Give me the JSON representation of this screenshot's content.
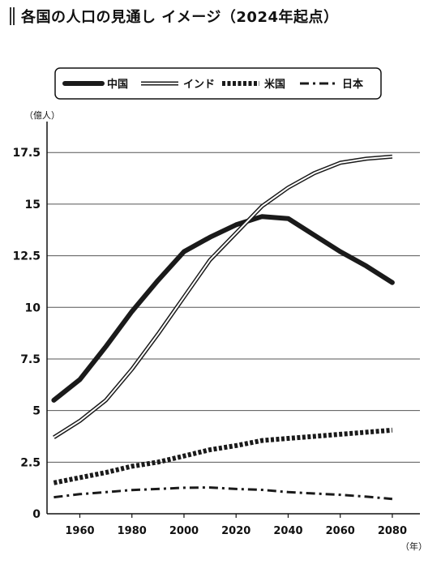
{
  "chart_data": {
    "type": "line",
    "title": "各国の人口の見通し イメージ（2024年起点）",
    "ylabel": "（億人）",
    "xlabel": "（年）",
    "x": [
      1950,
      1960,
      1970,
      1980,
      1990,
      2000,
      2010,
      2020,
      2030,
      2040,
      2050,
      2060,
      2070,
      2080
    ],
    "xticks": [
      1960,
      1980,
      2000,
      2020,
      2040,
      2060,
      2080
    ],
    "xlim": [
      1945,
      2091
    ],
    "ylim": [
      0,
      19
    ],
    "yticks": [
      0,
      2.5,
      5,
      7.5,
      10,
      12.5,
      15,
      17.5
    ],
    "ytick_labels": [
      "0",
      "2.5",
      "5",
      "7.5",
      "10",
      "12.5",
      "15",
      "17.5"
    ],
    "grid": "horizontal",
    "legend_position": "top",
    "series": [
      {
        "name": "中国",
        "style": "solid-thick",
        "values": [
          5.5,
          6.5,
          8.1,
          9.8,
          11.3,
          12.7,
          13.4,
          14.0,
          14.4,
          14.3,
          13.5,
          12.7,
          12.0,
          11.2
        ]
      },
      {
        "name": "インド",
        "style": "double",
        "values": [
          3.7,
          4.5,
          5.5,
          7.0,
          8.7,
          10.5,
          12.3,
          13.6,
          14.9,
          15.8,
          16.5,
          17.0,
          17.2,
          17.3
        ]
      },
      {
        "name": "米国",
        "style": "dotted-thick",
        "values": [
          1.5,
          1.75,
          2.0,
          2.3,
          2.5,
          2.8,
          3.1,
          3.3,
          3.55,
          3.65,
          3.75,
          3.85,
          3.95,
          4.05
        ]
      },
      {
        "name": "日本",
        "style": "dash-dot",
        "values": [
          0.8,
          0.95,
          1.05,
          1.15,
          1.2,
          1.26,
          1.27,
          1.2,
          1.16,
          1.05,
          0.98,
          0.92,
          0.83,
          0.72
        ]
      }
    ]
  }
}
